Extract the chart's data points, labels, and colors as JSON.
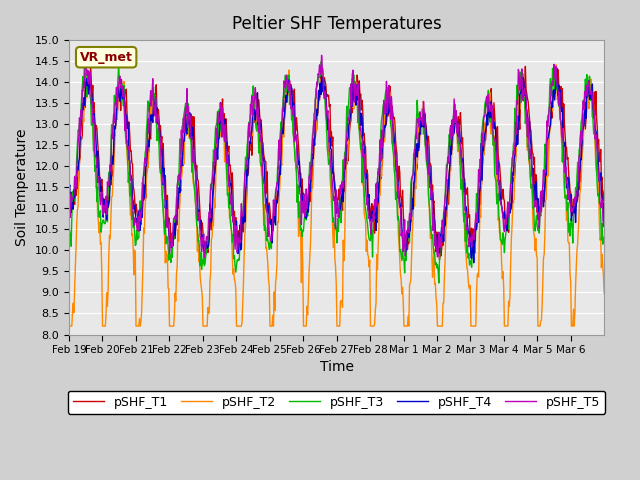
{
  "title": "Peltier SHF Temperatures",
  "ylabel": "Soil Temperature",
  "xlabel": "Time",
  "ylim": [
    8.0,
    15.0
  ],
  "yticks": [
    8.0,
    8.5,
    9.0,
    9.5,
    10.0,
    10.5,
    11.0,
    11.5,
    12.0,
    12.5,
    13.0,
    13.5,
    14.0,
    14.5,
    15.0
  ],
  "plot_bg": "#e8e8e8",
  "fig_bg": "#d0d0d0",
  "line_colors": {
    "pSHF_T1": "#cc0000",
    "pSHF_T2": "#ff8800",
    "pSHF_T3": "#00bb00",
    "pSHF_T4": "#0000cc",
    "pSHF_T5": "#bb00bb"
  },
  "vr_met_label": "VR_met",
  "vr_met_color": "#8b0000",
  "xtick_labels": [
    "Feb 19",
    "Feb 20",
    "Feb 21",
    "Feb 22",
    "Feb 23",
    "Feb 24",
    "Feb 25",
    "Feb 26",
    "Feb 27",
    "Feb 28",
    "Mar 1",
    "Mar 2",
    "Mar 3",
    "Mar 4",
    "Mar 5",
    "Mar 6"
  ]
}
